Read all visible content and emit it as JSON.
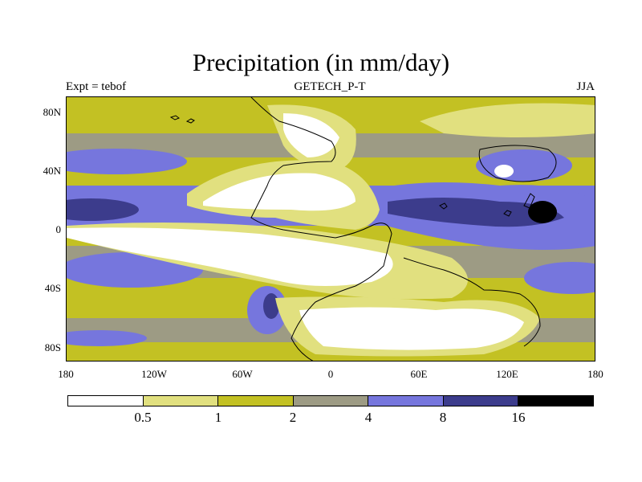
{
  "title": "Precipitation (in mm/day)",
  "subtitle_left": "Expt = tebof",
  "subtitle_center": "GETECH_P-T",
  "subtitle_right": "JJA",
  "map": {
    "lon_ticks": [
      "180",
      "120W",
      "60W",
      "0",
      "60E",
      "120E",
      "180"
    ],
    "lat_ticks": [
      "80N",
      "40N",
      "0",
      "40S",
      "80S"
    ]
  },
  "colorbar": {
    "labels": [
      "0.5",
      "1",
      "2",
      "4",
      "8",
      "16"
    ],
    "colors": [
      "#ffffff",
      "#e1e07f",
      "#c3c123",
      "#9d9b84",
      "#7676dd",
      "#3c3c8c",
      "#000000"
    ]
  }
}
